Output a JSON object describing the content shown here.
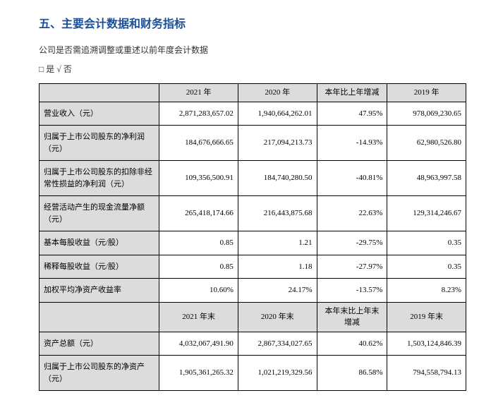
{
  "heading": "五、主要会计数据和财务指标",
  "subtext": "公司是否需追溯调整或重述以前年度会计数据",
  "checkbox_line": "□ 是  √ 否",
  "table1": {
    "headers": [
      "",
      "2021 年",
      "2020 年",
      "本年比上年增减",
      "2019 年"
    ],
    "rows": [
      {
        "label": "营业收入（元）",
        "c2021": "2,871,283,657.02",
        "c2020": "1,940,664,262.01",
        "chg": "47.95%",
        "c2019": "978,069,230.65"
      },
      {
        "label": "归属于上市公司股东的净利润（元）",
        "c2021": "184,676,666.65",
        "c2020": "217,094,213.73",
        "chg": "-14.93%",
        "c2019": "62,980,526.80"
      },
      {
        "label": "归属于上市公司股东的扣除非经常性损益的净利润（元）",
        "c2021": "109,356,500.91",
        "c2020": "184,740,280.50",
        "chg": "-40.81%",
        "c2019": "48,963,997.58"
      },
      {
        "label": "经营活动产生的现金流量净额（元）",
        "c2021": "265,418,174.66",
        "c2020": "216,443,875.68",
        "chg": "22.63%",
        "c2019": "129,314,246.67"
      },
      {
        "label": "基本每股收益（元/股）",
        "c2021": "0.85",
        "c2020": "1.21",
        "chg": "-29.75%",
        "c2019": "0.35"
      },
      {
        "label": "稀释每股收益（元/股）",
        "c2021": "0.85",
        "c2020": "1.18",
        "chg": "-27.97%",
        "c2019": "0.35"
      },
      {
        "label": "加权平均净资产收益率",
        "c2021": "10.60%",
        "c2020": "24.17%",
        "chg": "-13.57%",
        "c2019": "8.23%"
      }
    ]
  },
  "table2": {
    "headers": [
      "",
      "2021 年末",
      "2020 年末",
      "本年末比上年末增减",
      "2019 年末"
    ],
    "rows": [
      {
        "label": "资产总额（元）",
        "c2021": "4,032,067,491.90",
        "c2020": "2,867,334,027.65",
        "chg": "40.62%",
        "c2019": "1,503,124,846.39"
      },
      {
        "label": "归属于上市公司股东的净资产（元）",
        "c2021": "1,905,361,265.32",
        "c2020": "1,021,219,329.56",
        "chg": "86.58%",
        "c2019": "794,558,794.13"
      }
    ]
  }
}
